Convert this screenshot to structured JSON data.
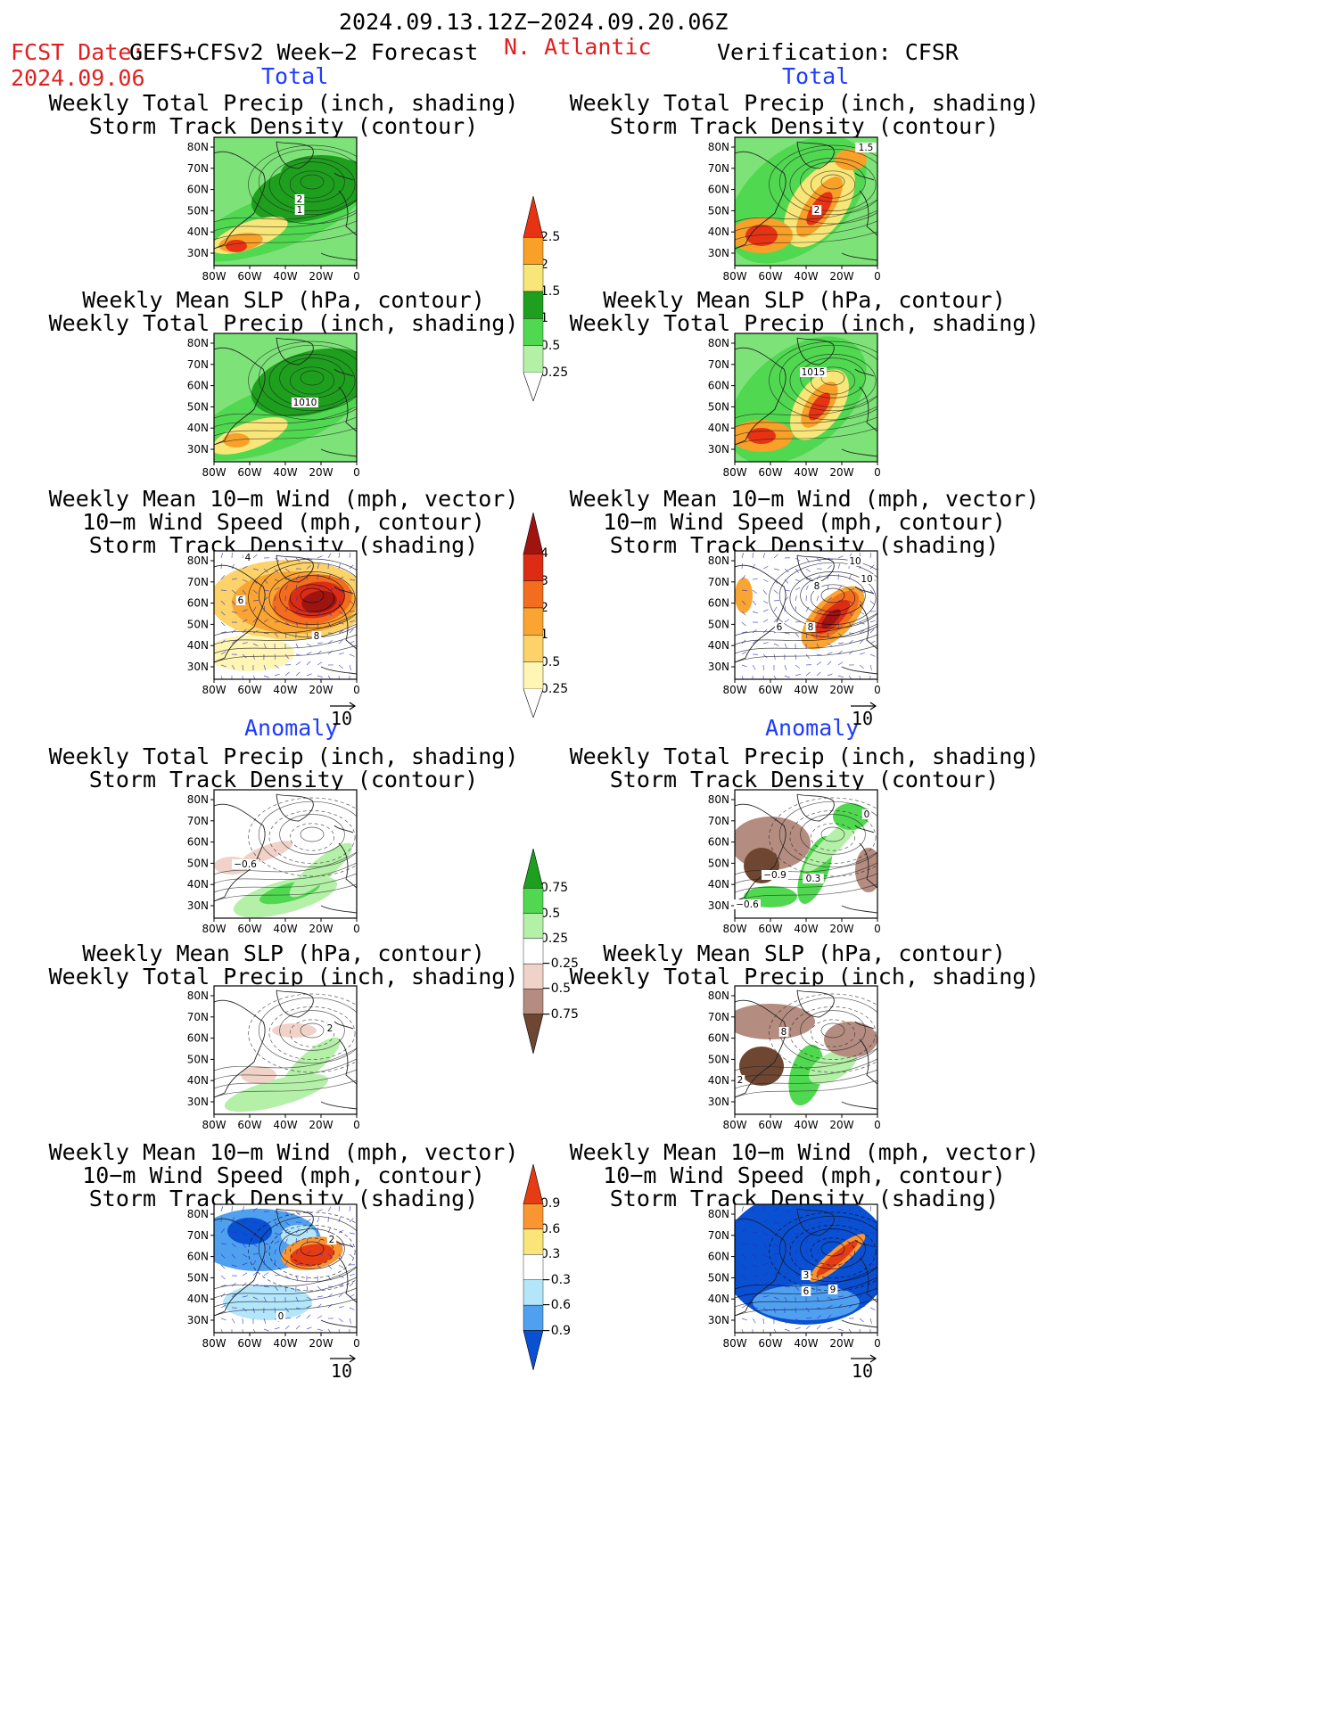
{
  "header": {
    "period": "2024.09.13.12Z−2024.09.20.06Z",
    "fcst_label": "FCST Date:",
    "fcst_desc": "GEFS+CFSv2 Week−2 Forecast",
    "fcst_date": "2024.09.06",
    "region": "N. Atlantic",
    "verification": "Verification: CFSR"
  },
  "sections": {
    "total": "Total",
    "anomaly": "Anomaly"
  },
  "titles": {
    "precip_storm": "Weekly Total Precip (inch, shading)\nStorm Track Density (contour)",
    "slp_precip": "Weekly Mean SLP (hPa, contour)\nWeekly Total Precip (inch, shading)",
    "wind_storm": "Weekly Mean 10−m Wind (mph, vector)\n10−m Wind Speed (mph, contour)\nStorm Track Density (shading)"
  },
  "axes": {
    "lat": [
      "80N",
      "70N",
      "60N",
      "50N",
      "40N",
      "30N"
    ],
    "lon": [
      "80W",
      "60W",
      "40W",
      "20W",
      "0"
    ]
  },
  "vector_ref": "10",
  "map_colors": {
    "land": "#ffffff",
    "precip": [
      "#b4f0a8",
      "#50d850",
      "#1ea01e",
      "#f8e678",
      "#f8a028",
      "#e83214"
    ],
    "storm": [
      "#fff5b4",
      "#fcd269",
      "#faa532",
      "#f26d1d",
      "#dc2d14",
      "#a0140f"
    ],
    "anom_precip": [
      "#f0d2c8",
      "#b48c80",
      "#6e4632",
      "#b4f0a8",
      "#50d850",
      "#1ea01e"
    ],
    "anom_storm": [
      "#0a50d2",
      "#50a0f0",
      "#b4e6fa",
      "#fae678",
      "#fa9632",
      "#e63c14"
    ]
  },
  "colorbars": [
    {
      "id": "precip_total",
      "colors": [
        "#b4f0a8",
        "#50d850",
        "#1ea01e",
        "#f8e678",
        "#f8a028",
        "#e83214"
      ],
      "labels": [
        "0.25",
        "0.5",
        "1",
        "1.5",
        "2",
        "2.5"
      ]
    },
    {
      "id": "storm_total",
      "colors": [
        "#fff5b4",
        "#fcd269",
        "#faa532",
        "#f26d1d",
        "#dc2d14",
        "#a0140f"
      ],
      "labels": [
        "0.25",
        "0.5",
        "1",
        "2",
        "3",
        "4"
      ]
    },
    {
      "id": "precip_anom",
      "colors": [
        "#6e4632",
        "#b48c80",
        "#f0d2c8",
        "#ffffff",
        "#b4f0a8",
        "#50d850",
        "#1ea01e"
      ],
      "labels": [
        "−0.75",
        "−0.5",
        "−0.25",
        "0.25",
        "0.5",
        "0.75"
      ]
    },
    {
      "id": "storm_anom",
      "colors": [
        "#0a50d2",
        "#50a0f0",
        "#b4e6fa",
        "#ffffff",
        "#fae678",
        "#fa9632",
        "#e63c14"
      ],
      "labels": [
        "−0.9",
        "−0.6",
        "−0.3",
        "0.3",
        "0.6",
        "0.9"
      ]
    }
  ],
  "panels": [
    {
      "id": "fc_total_precip",
      "labels": [
        "2",
        "1"
      ]
    },
    {
      "id": "ob_total_precip",
      "labels": [
        "1.5",
        "2"
      ]
    },
    {
      "id": "fc_total_slp",
      "labels": [
        "1010"
      ]
    },
    {
      "id": "ob_total_slp",
      "labels": [
        "1015"
      ]
    },
    {
      "id": "fc_total_wind",
      "labels": [
        "4",
        "6",
        "8"
      ]
    },
    {
      "id": "ob_total_wind",
      "labels": [
        "10",
        "10",
        "8",
        "6",
        "8"
      ]
    },
    {
      "id": "fc_anom_precip",
      "labels": [
        "−0.6"
      ]
    },
    {
      "id": "ob_anom_precip",
      "labels": [
        "0",
        "−0.9",
        "0.3",
        "−0.6"
      ]
    },
    {
      "id": "fc_anom_slp",
      "labels": [
        "2"
      ]
    },
    {
      "id": "ob_anom_slp",
      "labels": [
        "8",
        "2"
      ]
    },
    {
      "id": "fc_anom_wind",
      "labels": [
        "2",
        "0"
      ]
    },
    {
      "id": "ob_anom_wind",
      "labels": [
        "3",
        "6",
        "9"
      ]
    }
  ]
}
